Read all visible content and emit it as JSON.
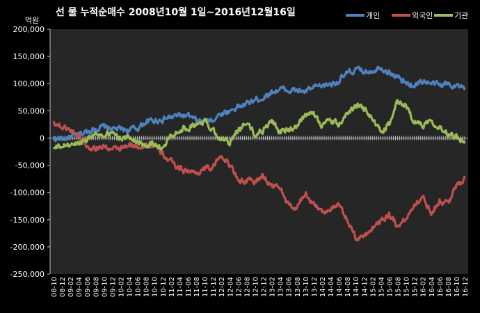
{
  "chart_data": {
    "type": "line",
    "title": "선 물 누적순매수 2008년10월 1일~2016년12월16일",
    "unit_label": "억원",
    "ylim": [
      -250000,
      200000
    ],
    "y_ticks": [
      "200,000",
      "150,000",
      "100,000",
      "50,000",
      "0",
      "-50,000",
      "-100,000",
      "-150,000",
      "-200,000",
      "-250,000"
    ],
    "y_tick_values": [
      200000,
      150000,
      100000,
      50000,
      0,
      -50000,
      -100000,
      -150000,
      -200000,
      -250000
    ],
    "x": [
      "08-10",
      "08-12",
      "09-02",
      "09-04",
      "09-06",
      "09-08",
      "09-10",
      "09-12",
      "10-02",
      "10-04",
      "10-06",
      "10-08",
      "10-10",
      "10-12",
      "11-02",
      "11-04",
      "11-06",
      "11-08",
      "11-10",
      "11-12",
      "12-02",
      "12-04",
      "12-06",
      "12-08",
      "12-10",
      "12-12",
      "13-02",
      "13-04",
      "13-06",
      "13-08",
      "13-10",
      "13-12",
      "14-02",
      "14-04",
      "14-06",
      "14-08",
      "14-10",
      "14-12",
      "15-02",
      "15-04",
      "15-06",
      "15-08",
      "15-10",
      "15-12",
      "16-02",
      "16-04",
      "16-06",
      "16-08",
      "16-10",
      "16-12"
    ],
    "grid": false,
    "legend_position": "top-right",
    "series": [
      {
        "name": "개인",
        "color": "#4f81bd",
        "values": [
          0,
          -2000,
          2000,
          5000,
          12000,
          18000,
          20000,
          17000,
          16000,
          15000,
          18000,
          30000,
          32000,
          35000,
          38000,
          42000,
          40000,
          32000,
          30000,
          35000,
          45000,
          50000,
          58000,
          62000,
          70000,
          75000,
          85000,
          90000,
          88000,
          87000,
          85000,
          92000,
          95000,
          100000,
          105000,
          118000,
          125000,
          122000,
          125000,
          132000,
          120000,
          112000,
          100000,
          98000,
          105000,
          100000,
          97000,
          100000,
          97000,
          88000
        ]
      },
      {
        "name": "외국인",
        "color": "#c0504d",
        "values": [
          30000,
          20000,
          15000,
          5000,
          -15000,
          -18000,
          -15000,
          -22000,
          -20000,
          -15000,
          -15000,
          -12000,
          -15000,
          -30000,
          -45000,
          -55000,
          -60000,
          -65000,
          -55000,
          -55000,
          -30000,
          -50000,
          -75000,
          -80000,
          -80000,
          -70000,
          -88000,
          -90000,
          -125000,
          -130000,
          -100000,
          -120000,
          -135000,
          -130000,
          -125000,
          -150000,
          -185000,
          -180000,
          -165000,
          -150000,
          -140000,
          -160000,
          -150000,
          -120000,
          -110000,
          -135000,
          -115000,
          -120000,
          -90000,
          -70000
        ]
      },
      {
        "name": "기관",
        "color": "#9bbb59",
        "values": [
          -20000,
          -15000,
          -12000,
          -10000,
          0,
          8000,
          5000,
          8000,
          2000,
          0,
          -5000,
          -12000,
          -10000,
          -20000,
          5000,
          15000,
          20000,
          25000,
          30000,
          15000,
          0,
          -10000,
          15000,
          30000,
          5000,
          15000,
          35000,
          10000,
          15000,
          20000,
          40000,
          45000,
          25000,
          30000,
          25000,
          45000,
          60000,
          55000,
          35000,
          10000,
          25000,
          65000,
          60000,
          30000,
          25000,
          35000,
          20000,
          10000,
          5000,
          -10000
        ]
      }
    ]
  }
}
